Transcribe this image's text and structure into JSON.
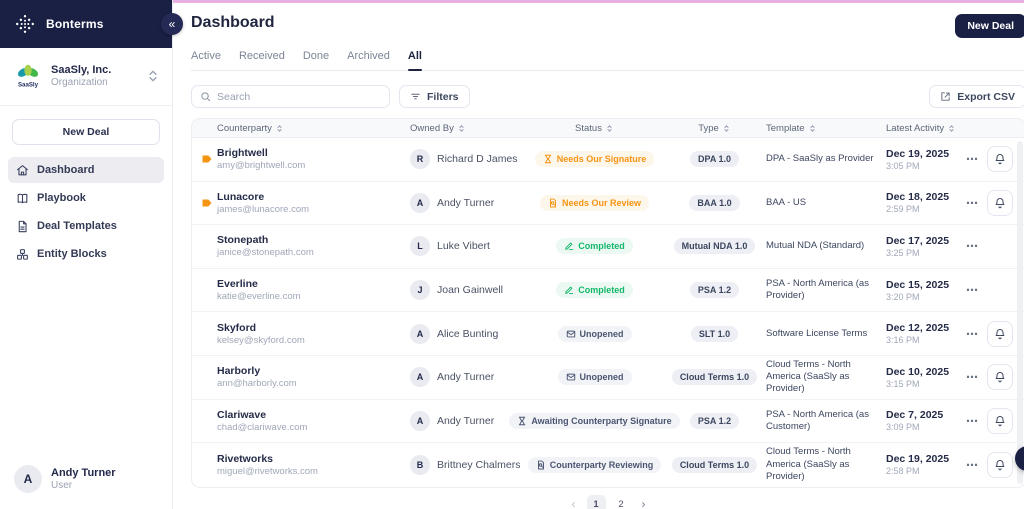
{
  "colors": {
    "navy": "#1a1f44",
    "accent_pink_bar": "#e9aee2",
    "warning": "#f59514",
    "success": "#12b76a",
    "neutral": "#4a5671"
  },
  "icons": {
    "collapse_glyph": "«",
    "ellipsis_glyph": "⋯",
    "help_glyph": "?",
    "prev_glyph": "‹",
    "next_glyph": "›"
  },
  "sidebar": {
    "brand": "Bonterms",
    "org": {
      "name": "SaaSly, Inc.",
      "type": "Organization"
    },
    "new_deal_label": "New Deal",
    "items": [
      {
        "label": "Dashboard",
        "icon": "home-icon",
        "active": true
      },
      {
        "label": "Playbook",
        "icon": "book-icon",
        "active": false
      },
      {
        "label": "Deal Templates",
        "icon": "document-icon",
        "active": false
      },
      {
        "label": "Entity Blocks",
        "icon": "blocks-icon",
        "active": false
      }
    ],
    "user": {
      "initial": "A",
      "name": "Andy Turner",
      "role": "User"
    }
  },
  "header": {
    "title": "Dashboard",
    "new_deal_label": "New Deal"
  },
  "tabs": [
    {
      "label": "Active",
      "active": false
    },
    {
      "label": "Received",
      "active": false
    },
    {
      "label": "Done",
      "active": false
    },
    {
      "label": "Archived",
      "active": false
    },
    {
      "label": "All",
      "active": true
    }
  ],
  "toolbar": {
    "search_placeholder": "Search",
    "filters_label": "Filters",
    "export_label": "Export CSV"
  },
  "table": {
    "columns": [
      "Counterparty",
      "Owned By",
      "Status",
      "Type",
      "Template",
      "Latest Activity"
    ],
    "rows": [
      {
        "flagged": true,
        "counterparty": "Brightwell",
        "email": "amy@brightwell.com",
        "owner_initial": "R",
        "owner": "Richard D James",
        "status": "Needs Our Signature",
        "status_kind": "warning",
        "status_icon": "hourglass-icon",
        "type": "DPA 1.0",
        "template": "DPA - SaaSly as Provider",
        "date": "Dec 19, 2025",
        "time": "3:05 PM",
        "has_bell": true
      },
      {
        "flagged": true,
        "counterparty": "Lunacore",
        "email": "james@lunacore.com",
        "owner_initial": "A",
        "owner": "Andy Turner",
        "status": "Needs Our Review",
        "status_kind": "warning",
        "status_icon": "document-search-icon",
        "type": "BAA 1.0",
        "template": "BAA - US",
        "date": "Dec 18, 2025",
        "time": "2:59 PM",
        "has_bell": true
      },
      {
        "flagged": false,
        "counterparty": "Stonepath",
        "email": "janice@stonepath.com",
        "owner_initial": "L",
        "owner": "Luke Vibert",
        "status": "Completed",
        "status_kind": "success",
        "status_icon": "pen-icon",
        "type": "Mutual NDA 1.0",
        "template": "Mutual NDA (Standard)",
        "date": "Dec 17, 2025",
        "time": "3:25 PM",
        "has_bell": false
      },
      {
        "flagged": false,
        "counterparty": "Everline",
        "email": "katie@everline.com",
        "owner_initial": "J",
        "owner": "Joan Gainwell",
        "status": "Completed",
        "status_kind": "success",
        "status_icon": "pen-icon",
        "type": "PSA 1.2",
        "template": "PSA - North America (as Provider)",
        "date": "Dec 15, 2025",
        "time": "3:20 PM",
        "has_bell": false
      },
      {
        "flagged": false,
        "counterparty": "Skyford",
        "email": "kelsey@skyford.com",
        "owner_initial": "A",
        "owner": "Alice Bunting",
        "status": "Unopened",
        "status_kind": "neutral",
        "status_icon": "envelope-icon",
        "type": "SLT 1.0",
        "template": "Software License Terms",
        "date": "Dec 12, 2025",
        "time": "3:16 PM",
        "has_bell": true
      },
      {
        "flagged": false,
        "counterparty": "Harborly",
        "email": "ann@harborly.com",
        "owner_initial": "A",
        "owner": "Andy Turner",
        "status": "Unopened",
        "status_kind": "neutral",
        "status_icon": "envelope-icon",
        "type": "Cloud Terms 1.0",
        "template": "Cloud Terms - North America (SaaSly as Provider)",
        "date": "Dec 10, 2025",
        "time": "3:15 PM",
        "has_bell": true
      },
      {
        "flagged": false,
        "counterparty": "Clariwave",
        "email": "chad@clariwave.com",
        "owner_initial": "A",
        "owner": "Andy Turner",
        "status": "Awaiting Counterparty Signature",
        "status_kind": "neutral",
        "status_icon": "hourglass-icon",
        "type": "PSA 1.2",
        "template": "PSA - North America (as Customer)",
        "date": "Dec 7, 2025",
        "time": "3:09 PM",
        "has_bell": true
      },
      {
        "flagged": false,
        "counterparty": "Rivetworks",
        "email": "miguel@rivetworks.com",
        "owner_initial": "B",
        "owner": "Brittney Chalmers",
        "status": "Counterparty Reviewing",
        "status_kind": "neutral",
        "status_icon": "document-search-icon",
        "type": "Cloud Terms 1.0",
        "template": "Cloud Terms - North America (SaaSly as Provider)",
        "date": "Dec 19, 2025",
        "time": "2:58 PM",
        "has_bell": true
      }
    ]
  },
  "pagination": {
    "pages": [
      "1",
      "2"
    ],
    "current": "1"
  }
}
